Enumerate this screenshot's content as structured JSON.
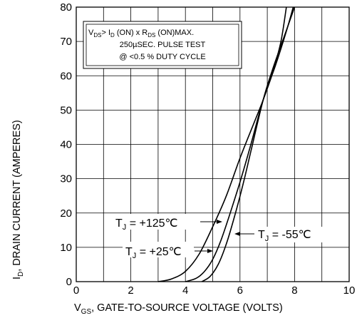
{
  "chart_data": {
    "type": "line",
    "xlabel": "V GS , GATE-TO-SOURCE VOLTAGE (VOLTS)",
    "xlabel_parts": {
      "main": "V",
      "sub": "GS",
      "rest": ", GATE-TO-SOURCE VOLTAGE (VOLTS)"
    },
    "ylabel": "I D , DRAIN  CURRENT (AMPERES)",
    "ylabel_parts": {
      "main": "I",
      "sub": "D",
      "rest": ", DRAIN  CURRENT (AMPERES)"
    },
    "xlim": [
      0,
      10
    ],
    "ylim": [
      0,
      80
    ],
    "x_ticks": [
      "0",
      "2",
      "4",
      "6",
      "8",
      "10"
    ],
    "y_ticks": [
      "0",
      "10",
      "20",
      "30",
      "40",
      "50",
      "60",
      "70",
      "80"
    ],
    "grid": true,
    "note": {
      "line1": {
        "v": "V",
        "vsub": "DS",
        "gt": "> I",
        "isub": "D",
        "on": " (ON) x  R",
        "rsub": "DS",
        "end": " (ON)MAX."
      },
      "line2": "250µSEC. PULSE TEST",
      "line3": "@ <0.5 % DUTY CYCLE"
    },
    "series": [
      {
        "name": "T J = +125°C",
        "label_parts": {
          "main": "T",
          "sub": "J",
          "rest": " = +125℃"
        },
        "x": [
          3.0,
          3.5,
          4.0,
          4.5,
          5.0,
          5.5,
          6.0,
          6.5,
          6.85,
          7.2,
          7.5,
          7.7
        ],
        "y": [
          0,
          0.8,
          3,
          8,
          16,
          25,
          36,
          46,
          53,
          61,
          70,
          80
        ]
      },
      {
        "name": "T J = +25°C",
        "label_parts": {
          "main": "T",
          "sub": "J",
          "rest": " = +25℃"
        },
        "x": [
          4.0,
          4.4,
          4.7,
          5.0,
          5.3,
          5.6,
          6.0,
          6.4,
          6.85,
          7.3,
          7.7,
          7.95
        ],
        "y": [
          0,
          1,
          3,
          6.5,
          12,
          19,
          29,
          40,
          53,
          63,
          73,
          80
        ]
      },
      {
        "name": "T J = -55°C",
        "label_parts": {
          "main": "T",
          "sub": "J",
          "rest": " = -55℃"
        },
        "x": [
          4.6,
          4.9,
          5.2,
          5.5,
          5.8,
          6.1,
          6.4,
          6.85,
          7.2,
          7.6,
          8.0
        ],
        "y": [
          0,
          1.5,
          5,
          11,
          19,
          28,
          38,
          53,
          62,
          71,
          80
        ]
      }
    ]
  }
}
